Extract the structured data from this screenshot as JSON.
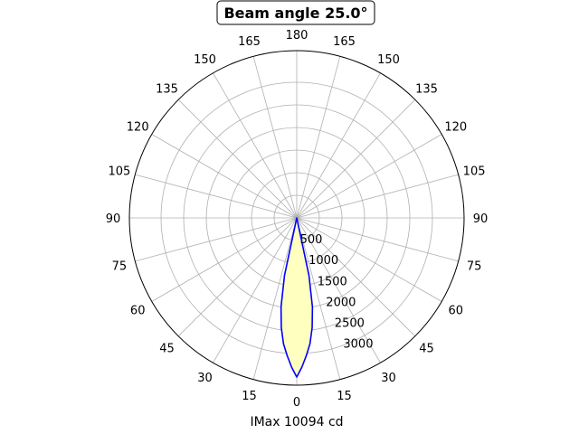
{
  "chart_data": {
    "type": "polar",
    "title": "Beam angle 25.0°",
    "xlabel": "IMax 10094 cd",
    "angle_tick_labels": [
      "0",
      "15",
      "30",
      "45",
      "60",
      "75",
      "90",
      "105",
      "120",
      "135",
      "150",
      "165",
      "180",
      "165",
      "150",
      "135",
      "120",
      "105",
      "90",
      "75",
      "60",
      "45",
      "30",
      "15"
    ],
    "radial_ticks": [
      500,
      1000,
      1500,
      2000,
      2500,
      3000
    ],
    "radial_tick_labels": [
      "500",
      "1000",
      "1500",
      "2000",
      "2500",
      "3000"
    ],
    "rlim": [
      0,
      3700
    ],
    "grid": true,
    "series": [
      {
        "angles_deg": [
          -13.8,
          -12,
          -10,
          -8,
          -6,
          -4,
          -2,
          0,
          2,
          4,
          6,
          8,
          10,
          12,
          13.8
        ],
        "r": [
          0,
          1300,
          2000,
          2450,
          2800,
          3050,
          3300,
          3520,
          3300,
          3050,
          2800,
          2450,
          2000,
          1300,
          0
        ],
        "line_color": "#0000ff",
        "fill_color": "#ffffc0"
      }
    ]
  }
}
